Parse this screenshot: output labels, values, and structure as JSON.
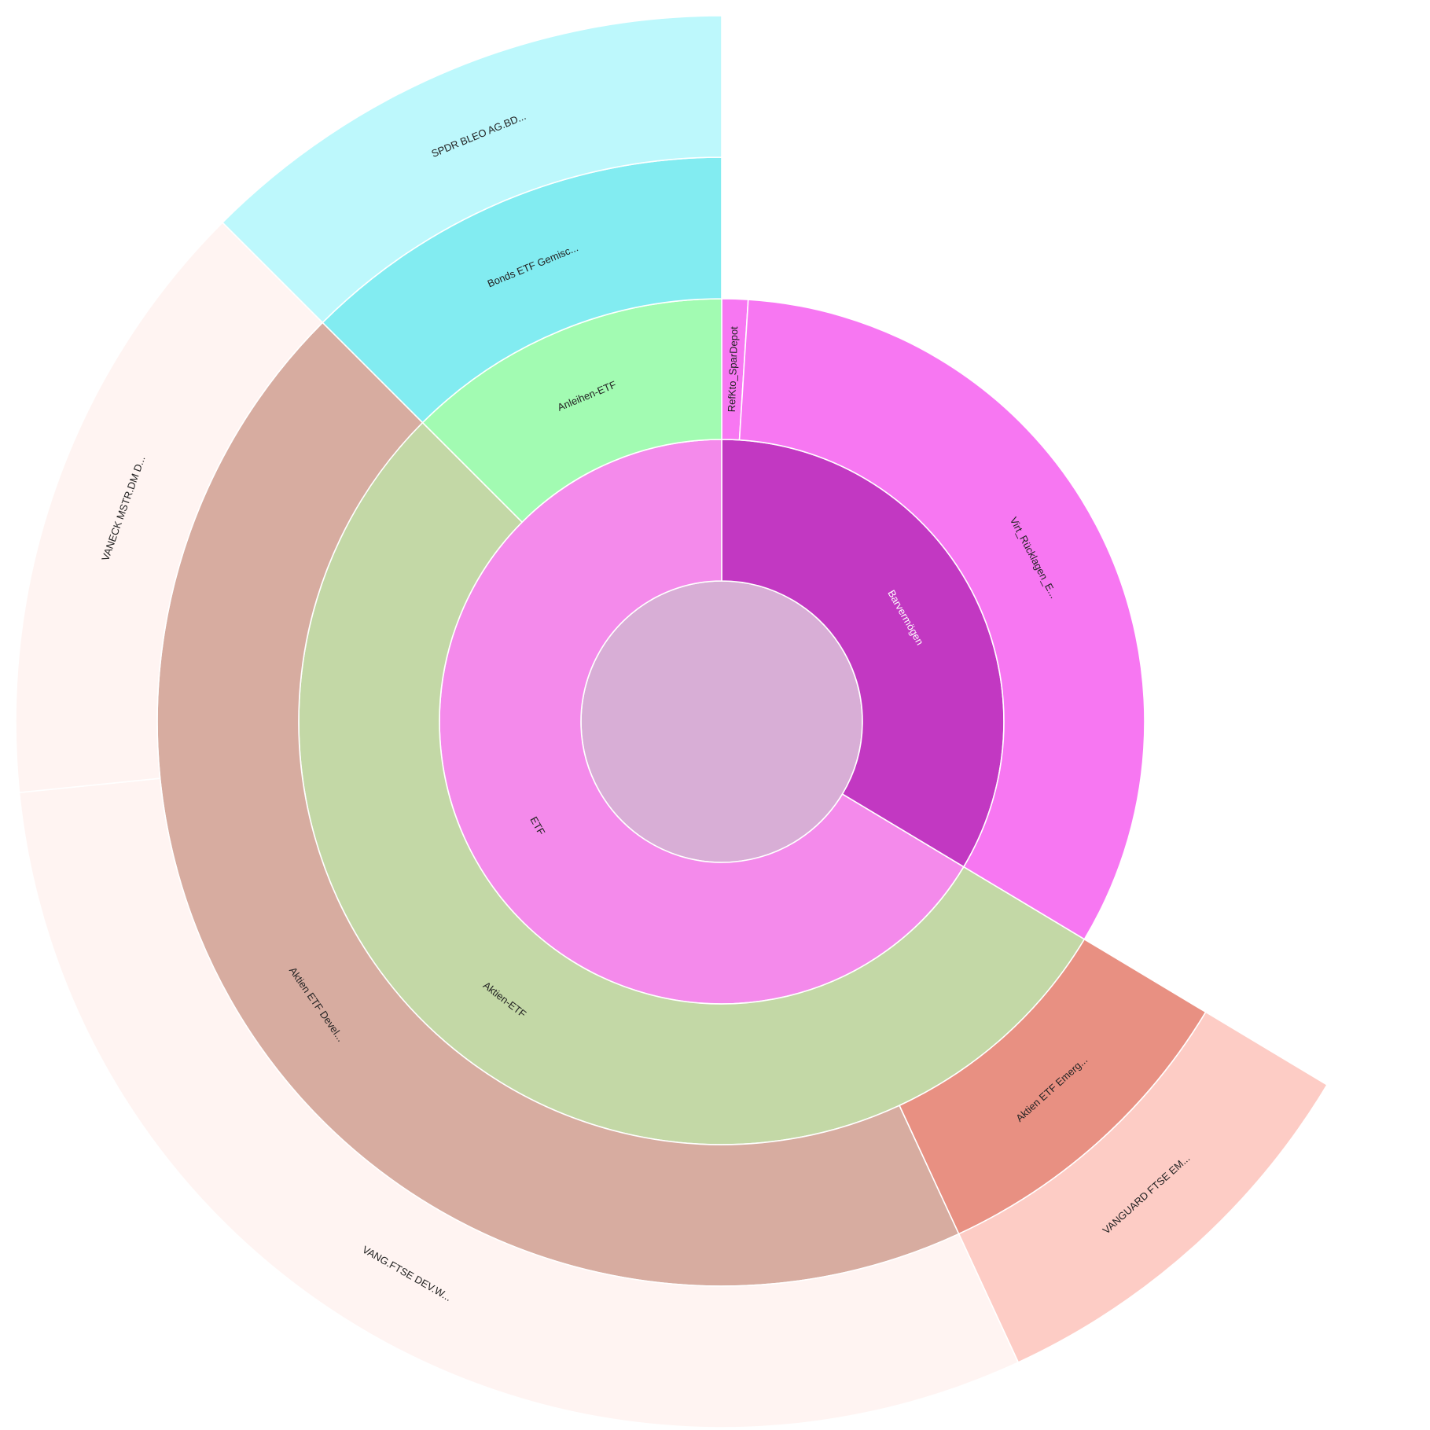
{
  "chart_data": {
    "type": "sunburst",
    "title": "",
    "start_at": "12 o'clock",
    "direction": "clockwise",
    "root": {
      "label": "",
      "color": "#d8aed6",
      "children": [
        {
          "label": "Barvermögen",
          "value": 33.6,
          "color": "#c238c2",
          "label_color": "#ffffff",
          "children": [
            {
              "label": "RefKto_SparDepot",
              "value": 1.0,
              "color": "#f777f2",
              "children": []
            },
            {
              "label": "Virt_Rücklagen_E...",
              "value": 32.6,
              "color": "#f777f2",
              "children": []
            }
          ]
        },
        {
          "label": "ETF",
          "value": 66.4,
          "color": "#f48aeb",
          "label_color": "#222222",
          "children": [
            {
              "label": "Aktien-ETF",
              "value": 53.9,
              "color": "#c3d8a6",
              "children": [
                {
                  "label": "Aktien ETF Emerg...",
                  "value": 9.5,
                  "color": "#e89082",
                  "children": [
                    {
                      "label": "VANGUARD FTSE EM...",
                      "value": 9.5,
                      "color": "#fdccc5"
                    }
                  ]
                },
                {
                  "label": "Aktien ETF Devel...",
                  "value": 44.4,
                  "color": "#d7aca0",
                  "children": [
                    {
                      "label": "VANG.FTSE DEV.W...",
                      "value": 30.3,
                      "color": "#fff4f2"
                    },
                    {
                      "label": "VANECK MSTR.DM D...",
                      "value": 14.1,
                      "color": "#fff4f2"
                    }
                  ]
                }
              ]
            },
            {
              "label": "Anleihen-ETF",
              "value": 12.5,
              "color": "#a2fbb2",
              "children": [
                {
                  "label": "Bonds ETF Gemisc...",
                  "value": 12.5,
                  "color": "#82ecf1",
                  "children": [
                    {
                      "label": "SPDR BLEO AG.BD...",
                      "value": 12.5,
                      "color": "#bdf8fc"
                    }
                  ]
                }
              ]
            }
          ]
        }
      ]
    }
  }
}
